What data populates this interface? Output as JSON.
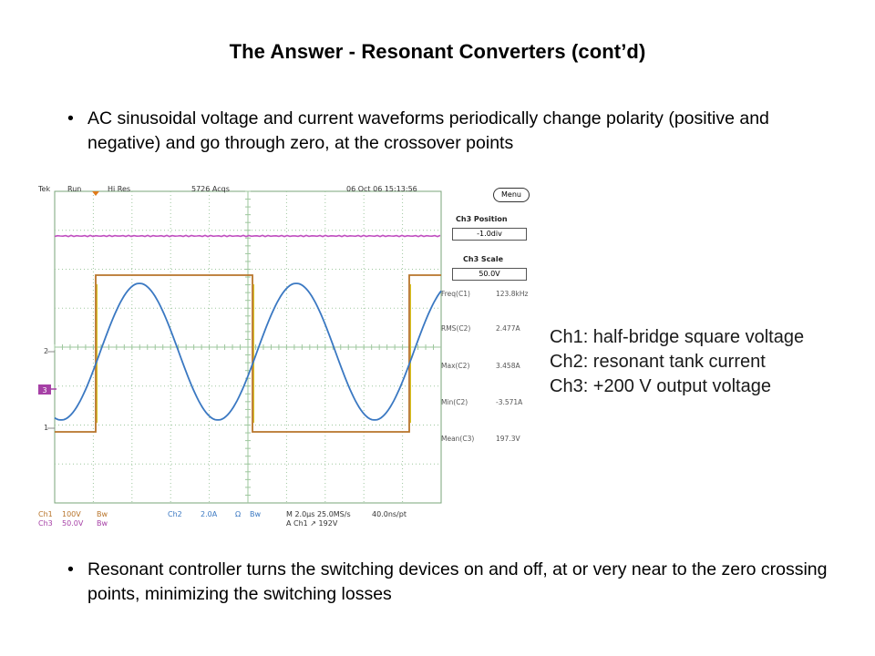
{
  "title": "The Answer - Resonant Converters (cont’d)",
  "bullets": [
    {
      "marker": "•",
      "text": "AC sinusoidal voltage and current waveforms periodically change polarity (positive and negative) and go through zero, at the crossover points"
    },
    {
      "marker": "•",
      "text": "Resonant controller turns the switching devices on and off, at or very near to the zero crossing points, minimizing the switching losses"
    }
  ],
  "scope": {
    "header": {
      "brand": "Tek",
      "run": "Run",
      "mode": "Hi Res",
      "acqs": "5726 Acqs",
      "datetime": "06 Oct 06 15:13:56"
    },
    "side_panel": {
      "menu_label": "Menu",
      "ch3_position_label": "Ch3 Position",
      "ch3_position_value": "-1.0div",
      "ch3_scale_label": "Ch3 Scale",
      "ch3_scale_value": "50.0V",
      "measurements": [
        {
          "label": "Freq(C1)",
          "value": "123.8kHz"
        },
        {
          "label": "RMS(C2)",
          "value": "2.477A"
        },
        {
          "label": "Max(C2)",
          "value": "3.458A"
        },
        {
          "label": "Min(C2)",
          "value": "-3.571A"
        },
        {
          "label": "Mean(C3)",
          "value": "197.3V"
        }
      ]
    },
    "channel_markers": {
      "ch2": "2",
      "ch1": "1",
      "ch3": "3"
    },
    "footer": {
      "ch1_label": "Ch1",
      "ch1_value": "100V",
      "ch1_bw": "Bw",
      "ch3_label": "Ch3",
      "ch3_value": "50.0V",
      "ch3_bw": "Bw",
      "ch2_label": "Ch2",
      "ch2_value": "2.0A",
      "ch2_unit": "Ω",
      "ch2_bw": "Bw",
      "timebase": "M 2.0µs 25.0MS/s",
      "points": "40.0ns/pt",
      "trigger": "A  Ch1  ↗  192V"
    },
    "colors": {
      "ch1_square": "#b8742a",
      "ch2_current": "#3a78c2",
      "ch3_output": "#c04fc0",
      "grid": "#9ec79e",
      "trace_yellow": "#d8c21a"
    }
  },
  "legend": [
    "Ch1: half-bridge square voltage",
    "Ch2: resonant tank current",
    "Ch3: +200 V output voltage"
  ]
}
